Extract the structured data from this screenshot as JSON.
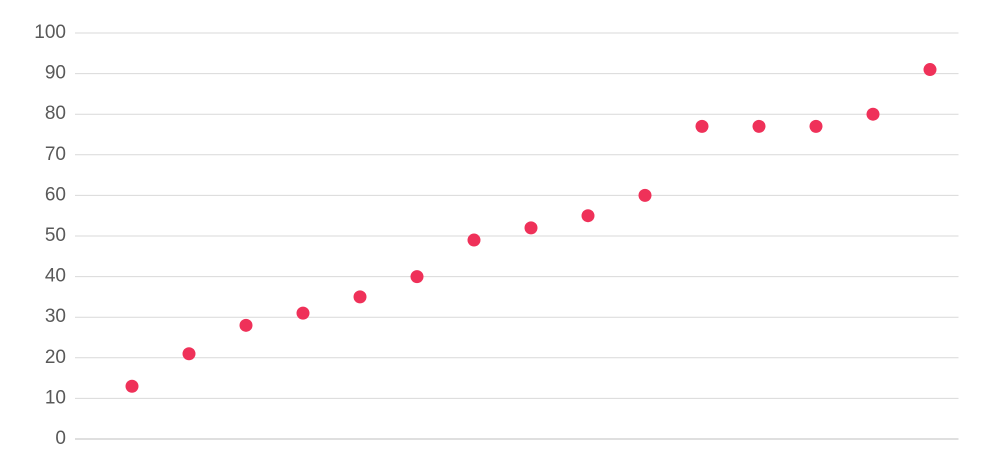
{
  "chart_data": {
    "type": "scatter",
    "x": [
      1,
      2,
      3,
      4,
      5,
      6,
      7,
      8,
      9,
      10,
      11,
      12,
      13,
      14,
      15
    ],
    "values": [
      13,
      21,
      28,
      31,
      35,
      40,
      49,
      52,
      55,
      60,
      77,
      77,
      77,
      80,
      91
    ],
    "color": "#ef3159",
    "xlim": [
      0,
      15.5
    ],
    "ylim": [
      0,
      100
    ],
    "yticks": [
      0,
      10,
      20,
      30,
      40,
      50,
      60,
      70,
      80,
      90,
      100
    ],
    "grid": true
  }
}
